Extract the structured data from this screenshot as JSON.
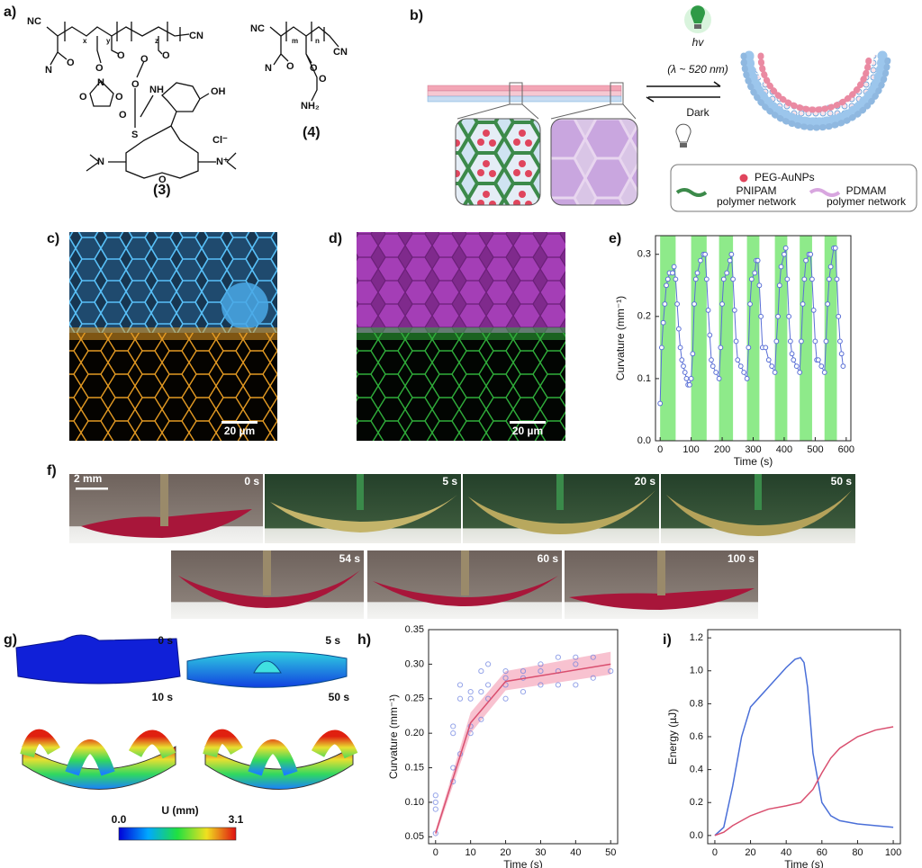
{
  "panel_labels": [
    "a)",
    "b)",
    "c)",
    "d)",
    "e)",
    "f)",
    "g)",
    "h)",
    "i)"
  ],
  "panel_a": {
    "compound_3": {
      "atoms": [
        "NC",
        "x",
        "y",
        "z",
        "CN",
        "N",
        "O",
        "O",
        "O",
        "N",
        "O",
        "O",
        "O",
        "O",
        "O",
        "O",
        "NH",
        "S",
        "OH",
        "N",
        "O",
        "N⁺",
        "Cl⁻"
      ],
      "label": "(3)"
    },
    "compound_4": {
      "atoms": [
        "NC",
        "m",
        "n",
        "CN",
        "N",
        "O",
        "O",
        "O",
        "NH₂"
      ],
      "label": "(4)"
    }
  },
  "panel_b": {
    "light": "hv",
    "wavelength": "(λ ~ 520 nm)",
    "dark": "Dark",
    "legend": [
      {
        "label": "PEG-AuNPs"
      },
      {
        "label": "PNIPAM",
        "sublabel": "polymer network"
      },
      {
        "label": "PDMAM",
        "sublabel": "polymer network"
      }
    ]
  },
  "panel_c": {
    "scale_bar": "20 µm"
  },
  "panel_d": {
    "scale_bar": "20 µm"
  },
  "panel_f": {
    "scale_bar": "2 mm",
    "frames": [
      "0 s",
      "5 s",
      "20 s",
      "50 s",
      "54 s",
      "60 s",
      "100 s"
    ]
  },
  "panel_g": {
    "frames": [
      "0 s",
      "5 s",
      "10 s",
      "50 s"
    ],
    "colorbar": {
      "title": "U (mm)",
      "min_label": "0.0",
      "max_label": "3.1"
    }
  },
  "chart_data": [
    {
      "type": "line",
      "xlabel": "Time (s)",
      "ylabel": "Curvature (mm⁻¹)",
      "xlim": [
        -15,
        615
      ],
      "ylim": [
        0,
        0.33
      ],
      "xticks": [
        0,
        100,
        200,
        300,
        400,
        500,
        600
      ],
      "yticks": [
        {
          "value": 0,
          "label": "0.0"
        },
        0.1,
        0.2,
        0.3
      ],
      "light_intervals": [
        [
          0,
          50
        ],
        [
          100,
          150
        ],
        [
          190,
          235
        ],
        [
          280,
          320
        ],
        [
          370,
          410
        ],
        [
          450,
          490
        ],
        [
          530,
          570
        ]
      ],
      "light_color": "#8eea8a",
      "series": [
        {
          "color": "#5a6fd6",
          "markers": true,
          "x": [
            0,
            5,
            10,
            15,
            20,
            25,
            30,
            40,
            45,
            50,
            55,
            60,
            65,
            70,
            75,
            80,
            85,
            90,
            95,
            100,
            105,
            110,
            115,
            120,
            130,
            140,
            145,
            150,
            155,
            160,
            165,
            170,
            180,
            190,
            195,
            200,
            205,
            215,
            225,
            230,
            235,
            240,
            245,
            250,
            260,
            270,
            280,
            285,
            290,
            295,
            305,
            310,
            315,
            320,
            325,
            330,
            340,
            350,
            360,
            370,
            375,
            380,
            385,
            390,
            400,
            405,
            410,
            415,
            420,
            425,
            430,
            440,
            450,
            455,
            460,
            465,
            470,
            480,
            485,
            490,
            495,
            500,
            505,
            510,
            520,
            530,
            535,
            540,
            545,
            550,
            560,
            565,
            570,
            575,
            580,
            585,
            590
          ],
          "values": [
            0.06,
            0.15,
            0.19,
            0.22,
            0.25,
            0.26,
            0.27,
            0.27,
            0.28,
            0.26,
            0.22,
            0.18,
            0.15,
            0.13,
            0.12,
            0.11,
            0.1,
            0.09,
            0.09,
            0.1,
            0.14,
            0.22,
            0.26,
            0.27,
            0.29,
            0.3,
            0.3,
            0.26,
            0.21,
            0.17,
            0.13,
            0.12,
            0.11,
            0.1,
            0.15,
            0.22,
            0.26,
            0.27,
            0.29,
            0.3,
            0.26,
            0.21,
            0.16,
            0.13,
            0.12,
            0.11,
            0.1,
            0.15,
            0.22,
            0.26,
            0.27,
            0.29,
            0.29,
            0.25,
            0.2,
            0.15,
            0.15,
            0.13,
            0.12,
            0.11,
            0.16,
            0.2,
            0.25,
            0.28,
            0.3,
            0.31,
            0.26,
            0.2,
            0.16,
            0.14,
            0.13,
            0.12,
            0.11,
            0.16,
            0.22,
            0.26,
            0.29,
            0.3,
            0.3,
            0.26,
            0.21,
            0.16,
            0.13,
            0.13,
            0.12,
            0.11,
            0.16,
            0.22,
            0.26,
            0.28,
            0.31,
            0.31,
            0.26,
            0.2,
            0.16,
            0.14,
            0.12
          ]
        }
      ]
    },
    {
      "type": "line",
      "xlabel": "Time (s)",
      "ylabel": "Curvature (mm⁻¹)",
      "xlim": [
        -2,
        52
      ],
      "ylim": [
        0.04,
        0.35
      ],
      "xticks": [
        0,
        10,
        20,
        30,
        40,
        50
      ],
      "yticks": [
        0.05,
        {
          "value": 0.1,
          "label": "0.10"
        },
        0.15,
        {
          "value": 0.2,
          "label": "0.20"
        },
        0.25,
        {
          "value": 0.3,
          "label": "0.30"
        },
        0.35
      ],
      "band": {
        "color": "#f6aec0",
        "x": [
          0,
          10,
          20,
          50
        ],
        "lower": [
          0.05,
          0.2,
          0.262,
          0.285
        ],
        "upper": [
          0.06,
          0.23,
          0.29,
          0.318
        ]
      },
      "points": {
        "color": "#6a7fe0",
        "x": [
          0,
          0,
          0,
          0,
          5,
          5,
          5,
          5,
          7,
          7,
          7,
          10,
          10,
          10,
          10,
          13,
          13,
          13,
          15,
          15,
          15,
          20,
          20,
          20,
          20,
          25,
          25,
          25,
          30,
          30,
          30,
          35,
          35,
          35,
          40,
          40,
          40,
          45,
          45,
          50
        ],
        "values": [
          0.055,
          0.09,
          0.1,
          0.11,
          0.13,
          0.15,
          0.2,
          0.21,
          0.17,
          0.25,
          0.27,
          0.2,
          0.21,
          0.25,
          0.26,
          0.22,
          0.26,
          0.29,
          0.25,
          0.27,
          0.3,
          0.25,
          0.27,
          0.28,
          0.29,
          0.26,
          0.28,
          0.29,
          0.27,
          0.29,
          0.3,
          0.27,
          0.29,
          0.31,
          0.27,
          0.3,
          0.31,
          0.28,
          0.31,
          0.29
        ]
      },
      "series": [
        {
          "color": "#d94f6f",
          "x": [
            0,
            10,
            20,
            50
          ],
          "values": [
            0.055,
            0.215,
            0.275,
            0.3
          ]
        }
      ]
    },
    {
      "type": "line",
      "xlabel": "Time (s)",
      "ylabel": "Energy (µJ)",
      "xlim": [
        -4,
        104
      ],
      "ylim": [
        -0.05,
        1.25
      ],
      "xticks": [
        0,
        20,
        40,
        60,
        80,
        100
      ],
      "yticks": [
        {
          "value": 0,
          "label": "0.0"
        },
        0.2,
        0.4,
        0.6,
        0.8,
        {
          "value": 1,
          "label": "1.0"
        },
        1.2
      ],
      "series": [
        {
          "color": "#4a6fd8",
          "x": [
            0,
            5,
            10,
            15,
            20,
            25,
            30,
            35,
            40,
            45,
            48,
            50,
            52,
            55,
            60,
            65,
            70,
            80,
            90,
            100
          ],
          "values": [
            0,
            0.05,
            0.3,
            0.6,
            0.78,
            0.84,
            0.9,
            0.96,
            1.02,
            1.07,
            1.08,
            1.05,
            0.9,
            0.5,
            0.2,
            0.12,
            0.09,
            0.07,
            0.06,
            0.05
          ]
        },
        {
          "color": "#d94f6f",
          "x": [
            0,
            5,
            10,
            20,
            30,
            40,
            48,
            55,
            60,
            65,
            70,
            80,
            90,
            100
          ],
          "values": [
            0,
            0.02,
            0.06,
            0.12,
            0.16,
            0.18,
            0.2,
            0.28,
            0.38,
            0.47,
            0.53,
            0.6,
            0.64,
            0.66
          ]
        }
      ]
    }
  ]
}
